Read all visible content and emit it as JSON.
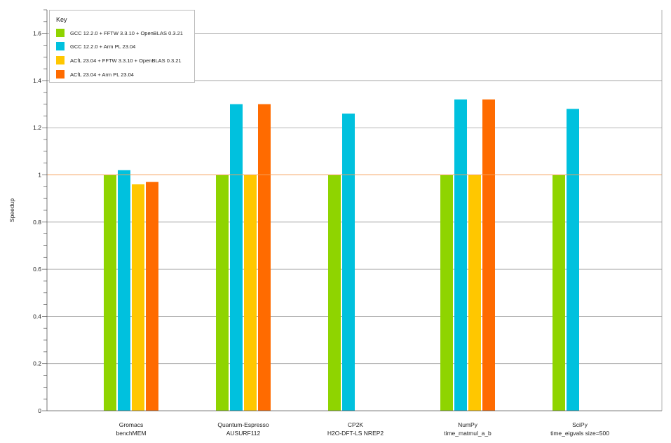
{
  "chart_data": {
    "type": "bar",
    "title": "",
    "xlabel": "",
    "ylabel": "Speedup",
    "ylim": [
      0,
      1.7
    ],
    "yticks": [
      0,
      0.2,
      0.4,
      0.6,
      0.8,
      1,
      1.2,
      1.4,
      1.6
    ],
    "ytick_labels": [
      "0",
      "0.2",
      "0.4",
      "0.6",
      "0.8",
      "1",
      "1.2",
      "1.4",
      "1.6"
    ],
    "reference_line": {
      "y": 1,
      "color": "#f7a15b"
    },
    "grid": true,
    "legend": {
      "title": "Key",
      "placement": "top-left"
    },
    "categories": [
      [
        "Gromacs",
        "benchMEM"
      ],
      [
        "Quantum-Espresso",
        "AUSURF112"
      ],
      [
        "CP2K",
        "H2O-DFT-LS NREP2"
      ],
      [
        "NumPy",
        "time_matmul_a_b"
      ],
      [
        "SciPy",
        "time_eigvals size=500"
      ]
    ],
    "series": [
      {
        "name": "GCC 12.2.0 + FFTW 3.3.10 + OpenBLAS 0.3.21",
        "color": "#8fd400",
        "values": [
          1,
          1,
          1,
          1,
          1
        ]
      },
      {
        "name": "GCC 12.2.0 + Arm PL 23.04",
        "color": "#00c1de",
        "values": [
          1.02,
          1.3,
          1.26,
          1.32,
          1.28
        ]
      },
      {
        "name": "ACfL 23.04 + FFTW 3.3.10 + OpenBLAS 0.3.21",
        "color": "#ffc700",
        "values": [
          0.96,
          1,
          null,
          1,
          null
        ]
      },
      {
        "name": "ACfL 23.04 + Arm PL 23.04",
        "color": "#ff6b00",
        "values": [
          0.97,
          1.3,
          null,
          1.32,
          null
        ]
      }
    ]
  }
}
